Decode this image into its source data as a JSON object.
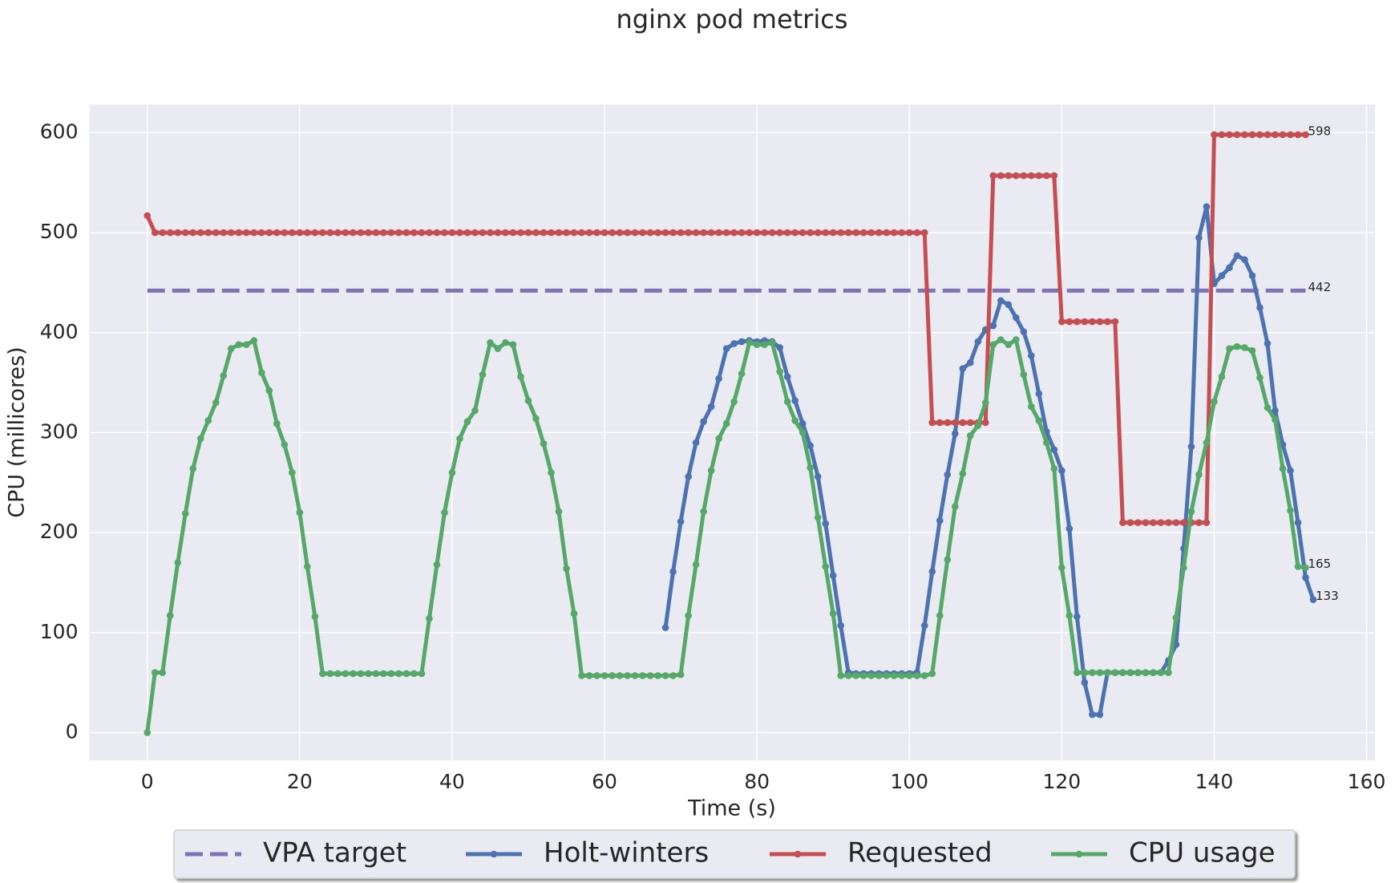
{
  "chart_data": {
    "type": "line",
    "title": "nginx pod metrics",
    "x_label": "Time (s)",
    "y_label": "CPU (millicores)",
    "x": [
      0,
      1,
      2,
      3,
      4,
      5,
      6,
      7,
      8,
      9,
      10,
      11,
      12,
      13,
      14,
      15,
      16,
      17,
      18,
      19,
      20,
      21,
      22,
      23,
      24,
      25,
      26,
      27,
      28,
      29,
      30,
      31,
      32,
      33,
      34,
      35,
      36,
      37,
      38,
      39,
      40,
      41,
      42,
      43,
      44,
      45,
      46,
      47,
      48,
      49,
      50,
      51,
      52,
      53,
      54,
      55,
      56,
      57,
      58,
      59,
      60,
      61,
      62,
      63,
      64,
      65,
      66,
      67,
      68,
      69,
      70,
      71,
      72,
      73,
      74,
      75,
      76,
      77,
      78,
      79,
      80,
      81,
      82,
      83,
      84,
      85,
      86,
      87,
      88,
      89,
      90,
      91,
      92,
      93,
      94,
      95,
      96,
      97,
      98,
      99,
      100,
      101,
      102,
      103,
      104,
      105,
      106,
      107,
      108,
      109,
      110,
      111,
      112,
      113,
      114,
      115,
      116,
      117,
      118,
      119,
      120,
      121,
      122,
      123,
      124,
      125,
      126,
      127,
      128,
      129,
      130,
      131,
      132,
      133,
      134,
      135,
      136,
      137,
      138,
      139,
      140,
      141,
      142,
      143,
      144,
      145,
      146,
      147,
      148,
      149,
      150,
      151,
      152,
      153
    ],
    "series": [
      {
        "name": "VPA target",
        "color": "#8172b3",
        "dashed": true,
        "markers": false,
        "values": [
          442,
          442,
          442,
          442,
          442,
          442,
          442,
          442,
          442,
          442,
          442,
          442,
          442,
          442,
          442,
          442,
          442,
          442,
          442,
          442,
          442,
          442,
          442,
          442,
          442,
          442,
          442,
          442,
          442,
          442,
          442,
          442,
          442,
          442,
          442,
          442,
          442,
          442,
          442,
          442,
          442,
          442,
          442,
          442,
          442,
          442,
          442,
          442,
          442,
          442,
          442,
          442,
          442,
          442,
          442,
          442,
          442,
          442,
          442,
          442,
          442,
          442,
          442,
          442,
          442,
          442,
          442,
          442,
          442,
          442,
          442,
          442,
          442,
          442,
          442,
          442,
          442,
          442,
          442,
          442,
          442,
          442,
          442,
          442,
          442,
          442,
          442,
          442,
          442,
          442,
          442,
          442,
          442,
          442,
          442,
          442,
          442,
          442,
          442,
          442,
          442,
          442,
          442,
          442,
          442,
          442,
          442,
          442,
          442,
          442,
          442,
          442,
          442,
          442,
          442,
          442,
          442,
          442,
          442,
          442,
          442,
          442,
          442,
          442,
          442,
          442,
          442,
          442,
          442,
          442,
          442,
          442,
          442,
          442,
          442,
          442,
          442,
          442,
          442,
          442,
          442,
          442,
          442,
          442,
          442,
          442,
          442,
          442,
          442,
          442,
          442,
          442,
          442,
          null
        ]
      },
      {
        "name": "Holt-winters",
        "color": "#4c72b0",
        "dashed": false,
        "markers": true,
        "values": [
          null,
          null,
          null,
          null,
          null,
          null,
          null,
          null,
          null,
          null,
          null,
          null,
          null,
          null,
          null,
          null,
          null,
          null,
          null,
          null,
          null,
          null,
          null,
          null,
          null,
          null,
          null,
          null,
          null,
          null,
          null,
          null,
          null,
          null,
          null,
          null,
          null,
          null,
          null,
          null,
          null,
          null,
          null,
          null,
          null,
          null,
          null,
          null,
          null,
          null,
          null,
          null,
          null,
          null,
          null,
          null,
          null,
          null,
          null,
          null,
          null,
          null,
          null,
          null,
          null,
          null,
          null,
          null,
          105,
          161,
          211,
          256,
          290,
          311,
          326,
          354,
          384,
          389,
          391,
          392,
          391,
          392,
          391,
          385,
          356,
          332,
          309,
          287,
          256,
          209,
          157,
          107,
          60,
          59,
          59,
          59,
          59,
          59,
          59,
          59,
          59,
          60,
          107,
          161,
          212,
          258,
          299,
          364,
          370,
          391,
          403,
          407,
          432,
          428,
          415,
          401,
          377,
          339,
          301,
          283,
          262,
          204,
          116,
          50,
          18,
          18,
          60,
          60,
          60,
          60,
          60,
          60,
          60,
          60,
          72,
          88,
          184,
          286,
          495,
          526,
          449,
          457,
          465,
          477,
          473,
          457,
          425,
          389,
          322,
          288,
          262,
          210,
          155,
          133
        ]
      },
      {
        "name": "Requested",
        "color": "#c44e52",
        "dashed": false,
        "markers": true,
        "values": [
          517,
          500,
          500,
          500,
          500,
          500,
          500,
          500,
          500,
          500,
          500,
          500,
          500,
          500,
          500,
          500,
          500,
          500,
          500,
          500,
          500,
          500,
          500,
          500,
          500,
          500,
          500,
          500,
          500,
          500,
          500,
          500,
          500,
          500,
          500,
          500,
          500,
          500,
          500,
          500,
          500,
          500,
          500,
          500,
          500,
          500,
          500,
          500,
          500,
          500,
          500,
          500,
          500,
          500,
          500,
          500,
          500,
          500,
          500,
          500,
          500,
          500,
          500,
          500,
          500,
          500,
          500,
          500,
          500,
          500,
          500,
          500,
          500,
          500,
          500,
          500,
          500,
          500,
          500,
          500,
          500,
          500,
          500,
          500,
          500,
          500,
          500,
          500,
          500,
          500,
          500,
          500,
          500,
          500,
          500,
          500,
          500,
          500,
          500,
          500,
          500,
          500,
          500,
          310,
          310,
          310,
          310,
          310,
          310,
          310,
          310,
          557,
          557,
          557,
          557,
          557,
          557,
          557,
          557,
          557,
          411,
          411,
          411,
          411,
          411,
          411,
          411,
          411,
          210,
          210,
          210,
          210,
          210,
          210,
          210,
          210,
          210,
          210,
          210,
          210,
          598,
          598,
          598,
          598,
          598,
          598,
          598,
          598,
          598,
          598,
          598,
          598,
          598,
          null
        ]
      },
      {
        "name": "CPU usage",
        "color": "#55a868",
        "dashed": false,
        "markers": true,
        "values": [
          0,
          60,
          60,
          117,
          170,
          219,
          264,
          294,
          312,
          330,
          357,
          384,
          388,
          388,
          392,
          360,
          342,
          309,
          288,
          260,
          220,
          166,
          116,
          59,
          59,
          59,
          59,
          59,
          59,
          59,
          59,
          59,
          59,
          59,
          59,
          59,
          59,
          114,
          168,
          220,
          260,
          294,
          311,
          322,
          358,
          390,
          384,
          390,
          388,
          356,
          332,
          314,
          289,
          260,
          221,
          164,
          119,
          57,
          57,
          57,
          57,
          57,
          57,
          57,
          57,
          57,
          57,
          57,
          57,
          57,
          58,
          117,
          168,
          221,
          262,
          294,
          309,
          331,
          359,
          390,
          388,
          388,
          390,
          361,
          331,
          312,
          300,
          265,
          215,
          166,
          119,
          57,
          57,
          57,
          57,
          57,
          57,
          57,
          57,
          57,
          57,
          57,
          57,
          59,
          117,
          173,
          226,
          259,
          297,
          307,
          330,
          388,
          393,
          388,
          393,
          358,
          326,
          312,
          290,
          264,
          165,
          117,
          60,
          60,
          60,
          60,
          60,
          60,
          60,
          60,
          60,
          60,
          60,
          60,
          60,
          115,
          165,
          221,
          258,
          290,
          331,
          356,
          384,
          386,
          385,
          382,
          355,
          325,
          313,
          264,
          222,
          166,
          165,
          null
        ]
      }
    ],
    "annotations": [
      {
        "x": 152,
        "y": 598
      },
      {
        "x": 152,
        "y": 442
      },
      {
        "x": 152,
        "y": 165
      },
      {
        "x": 153,
        "y": 133
      }
    ],
    "xlim": [
      -7.6,
      161.1
    ],
    "ylim": [
      -27.7,
      628
    ],
    "xticks": [
      0,
      20,
      40,
      60,
      80,
      100,
      120,
      140,
      160
    ],
    "yticks": [
      0,
      100,
      200,
      300,
      400,
      500,
      600
    ],
    "grid": true,
    "legend": "below"
  }
}
